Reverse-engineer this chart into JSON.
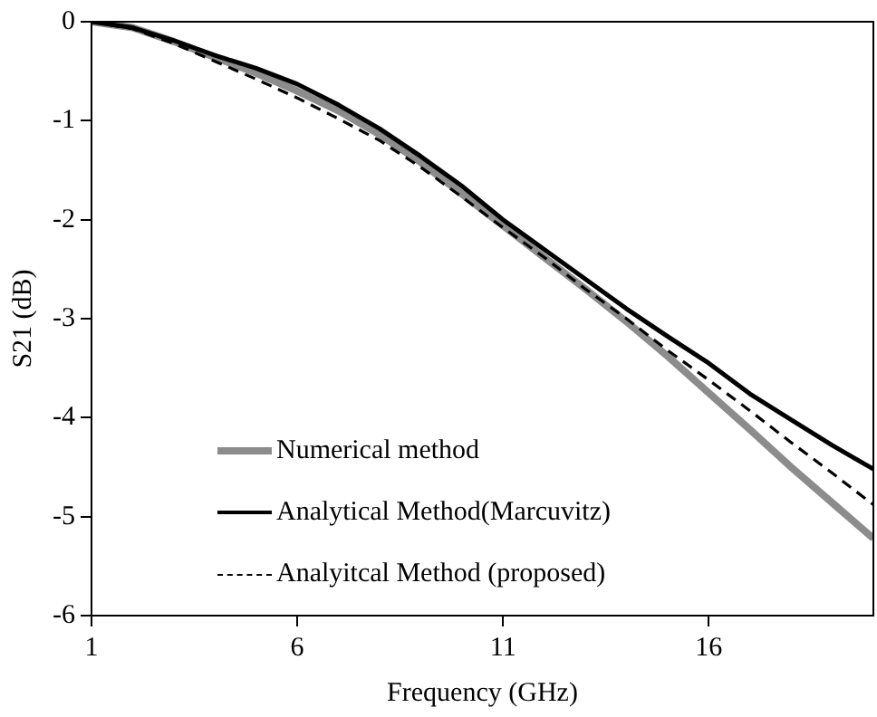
{
  "chart_data": {
    "type": "line",
    "xlabel": "Frequency (GHz)",
    "ylabel": "S21 (dB)",
    "x": [
      1,
      2,
      3,
      4,
      5,
      6,
      7,
      8,
      9,
      10,
      11,
      12,
      13,
      14,
      15,
      16,
      17,
      18,
      19,
      20
    ],
    "series": [
      {
        "name": "Numerical method",
        "color": "#8c8c8c",
        "line_style": "solid",
        "values": [
          0,
          -0.06,
          -0.2,
          -0.36,
          -0.52,
          -0.7,
          -0.9,
          -1.14,
          -1.42,
          -1.74,
          -2.06,
          -2.38,
          -2.7,
          -3.03,
          -3.38,
          -3.75,
          -4.12,
          -4.5,
          -4.86,
          -5.22
        ]
      },
      {
        "name": "Analytical Method(Marcuvitz)",
        "color": "#000000",
        "line_style": "solid",
        "values": [
          0,
          -0.06,
          -0.19,
          -0.34,
          -0.47,
          -0.63,
          -0.84,
          -1.08,
          -1.36,
          -1.66,
          -2.0,
          -2.3,
          -2.6,
          -2.9,
          -3.18,
          -3.45,
          -3.76,
          -4.02,
          -4.28,
          -4.52
        ]
      },
      {
        "name": "Analyitcal Method (proposed)",
        "color": "#000000",
        "line_style": "dashed",
        "values": [
          0,
          -0.07,
          -0.22,
          -0.4,
          -0.58,
          -0.77,
          -0.98,
          -1.2,
          -1.47,
          -1.77,
          -2.08,
          -2.38,
          -2.7,
          -3.0,
          -3.32,
          -3.62,
          -3.93,
          -4.25,
          -4.56,
          -4.88
        ]
      }
    ],
    "xlim": [
      1,
      20
    ],
    "xticks": [
      1,
      6,
      11,
      16
    ],
    "ylim": [
      -6,
      0
    ],
    "yticks": [
      -6,
      -5,
      -4,
      -3,
      -2,
      -1,
      0
    ],
    "grid": false,
    "legend": "bottom left",
    "marker": "none"
  }
}
